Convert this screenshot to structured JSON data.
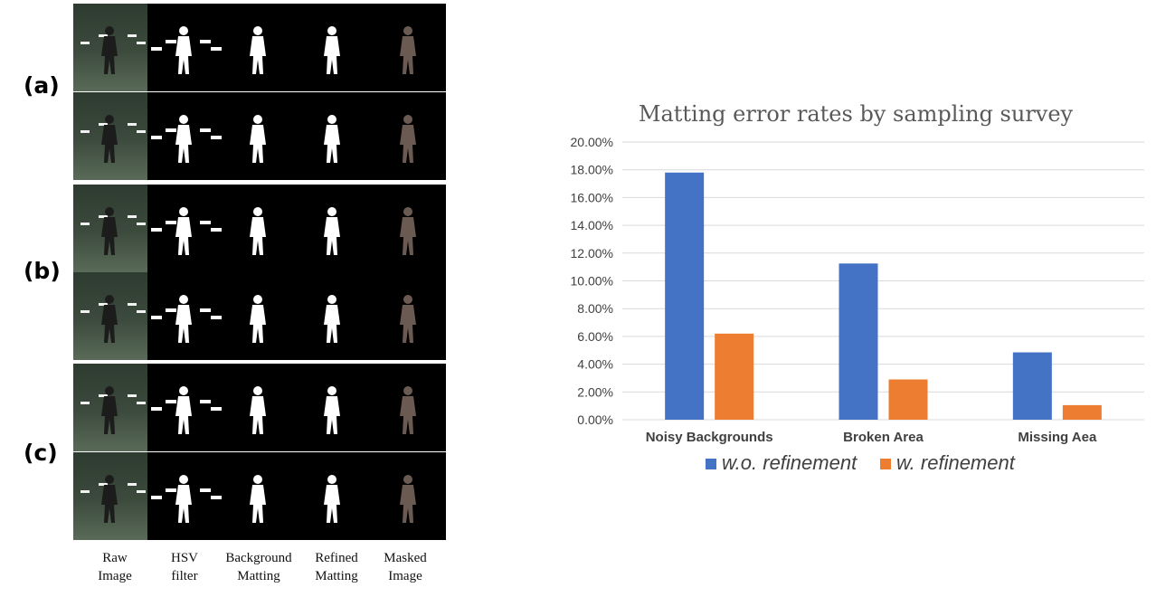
{
  "figure": {
    "group_labels": [
      "(a)",
      "(b)",
      "(c)"
    ],
    "column_captions": [
      [
        "Raw",
        "Image"
      ],
      [
        "HSV",
        "filter"
      ],
      [
        "Background",
        "Matting"
      ],
      [
        "Refined",
        "Matting"
      ],
      [
        "Masked",
        "Image"
      ]
    ]
  },
  "colors": {
    "series_1": "#4472c4",
    "series_2": "#ed7d31",
    "gridline": "#d9d9d9",
    "text": "#404040"
  },
  "chart_data": {
    "type": "bar",
    "title": "Matting error rates by sampling survey",
    "categories": [
      "Noisy Backgrounds",
      "Broken Area",
      "Missing Aea"
    ],
    "series": [
      {
        "name": "w.o. refinement",
        "values": [
          17.8,
          11.25,
          4.85
        ]
      },
      {
        "name": "w. refinement",
        "values": [
          6.2,
          2.9,
          1.05
        ]
      }
    ],
    "ylim": [
      0,
      20
    ],
    "ytick_labels": [
      "0.00%",
      "2.00%",
      "4.00%",
      "6.00%",
      "8.00%",
      "10.00%",
      "12.00%",
      "14.00%",
      "16.00%",
      "18.00%",
      "20.00%"
    ],
    "xlabel": "",
    "ylabel": "",
    "grid": true,
    "legend": "bottom"
  }
}
